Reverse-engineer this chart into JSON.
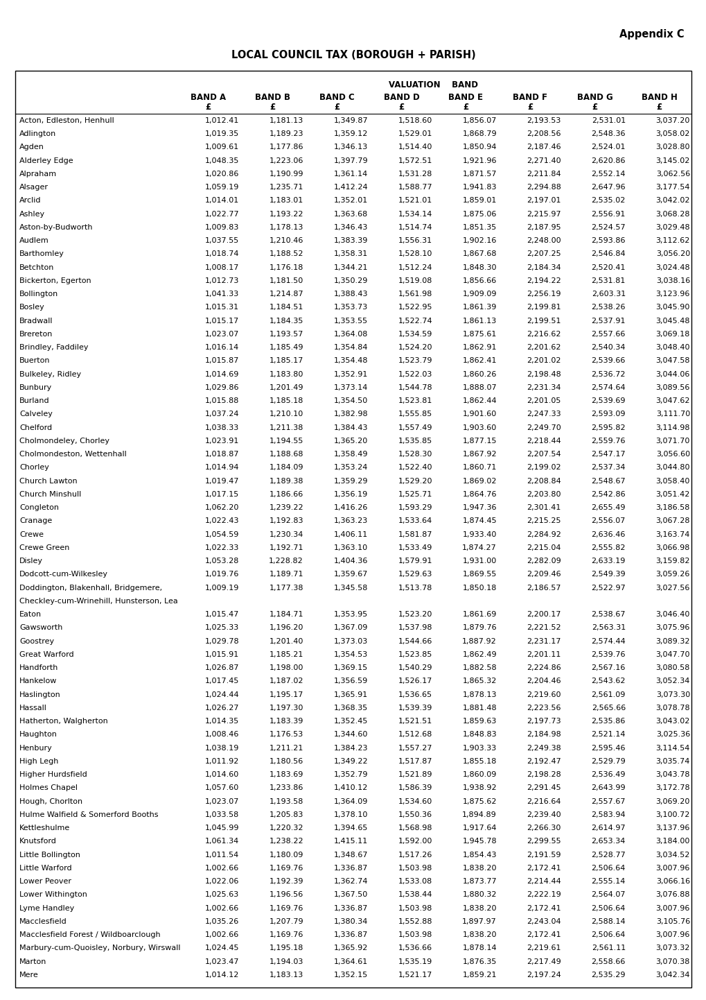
{
  "appendix_text": "Appendix C",
  "title": "LOCAL COUNCIL TAX (BOROUGH + PARISH)",
  "valuation_band_header": "VALUATION    BAND",
  "rows": [
    [
      "Acton, Edleston, Henhull",
      "1,012.41",
      "1,181.13",
      "1,349.87",
      "1,518.60",
      "1,856.07",
      "2,193.53",
      "2,531.01",
      "3,037.20"
    ],
    [
      "Adlington",
      "1,019.35",
      "1,189.23",
      "1,359.12",
      "1,529.01",
      "1,868.79",
      "2,208.56",
      "2,548.36",
      "3,058.02"
    ],
    [
      "Agden",
      "1,009.61",
      "1,177.86",
      "1,346.13",
      "1,514.40",
      "1,850.94",
      "2,187.46",
      "2,524.01",
      "3,028.80"
    ],
    [
      "Alderley Edge",
      "1,048.35",
      "1,223.06",
      "1,397.79",
      "1,572.51",
      "1,921.96",
      "2,271.40",
      "2,620.86",
      "3,145.02"
    ],
    [
      "Alpraham",
      "1,020.86",
      "1,190.99",
      "1,361.14",
      "1,531.28",
      "1,871.57",
      "2,211.84",
      "2,552.14",
      "3,062.56"
    ],
    [
      "Alsager",
      "1,059.19",
      "1,235.71",
      "1,412.24",
      "1,588.77",
      "1,941.83",
      "2,294.88",
      "2,647.96",
      "3,177.54"
    ],
    [
      "Arclid",
      "1,014.01",
      "1,183.01",
      "1,352.01",
      "1,521.01",
      "1,859.01",
      "2,197.01",
      "2,535.02",
      "3,042.02"
    ],
    [
      "Ashley",
      "1,022.77",
      "1,193.22",
      "1,363.68",
      "1,534.14",
      "1,875.06",
      "2,215.97",
      "2,556.91",
      "3,068.28"
    ],
    [
      "Aston-by-Budworth",
      "1,009.83",
      "1,178.13",
      "1,346.43",
      "1,514.74",
      "1,851.35",
      "2,187.95",
      "2,524.57",
      "3,029.48"
    ],
    [
      "Audlem",
      "1,037.55",
      "1,210.46",
      "1,383.39",
      "1,556.31",
      "1,902.16",
      "2,248.00",
      "2,593.86",
      "3,112.62"
    ],
    [
      "Barthomley",
      "1,018.74",
      "1,188.52",
      "1,358.31",
      "1,528.10",
      "1,867.68",
      "2,207.25",
      "2,546.84",
      "3,056.20"
    ],
    [
      "Betchton",
      "1,008.17",
      "1,176.18",
      "1,344.21",
      "1,512.24",
      "1,848.30",
      "2,184.34",
      "2,520.41",
      "3,024.48"
    ],
    [
      "Bickerton, Egerton",
      "1,012.73",
      "1,181.50",
      "1,350.29",
      "1,519.08",
      "1,856.66",
      "2,194.22",
      "2,531.81",
      "3,038.16"
    ],
    [
      "Bollington",
      "1,041.33",
      "1,214.87",
      "1,388.43",
      "1,561.98",
      "1,909.09",
      "2,256.19",
      "2,603.31",
      "3,123.96"
    ],
    [
      "Bosley",
      "1,015.31",
      "1,184.51",
      "1,353.73",
      "1,522.95",
      "1,861.39",
      "2,199.81",
      "2,538.26",
      "3,045.90"
    ],
    [
      "Bradwall",
      "1,015.17",
      "1,184.35",
      "1,353.55",
      "1,522.74",
      "1,861.13",
      "2,199.51",
      "2,537.91",
      "3,045.48"
    ],
    [
      "Brereton",
      "1,023.07",
      "1,193.57",
      "1,364.08",
      "1,534.59",
      "1,875.61",
      "2,216.62",
      "2,557.66",
      "3,069.18"
    ],
    [
      "Brindley, Faddiley",
      "1,016.14",
      "1,185.49",
      "1,354.84",
      "1,524.20",
      "1,862.91",
      "2,201.62",
      "2,540.34",
      "3,048.40"
    ],
    [
      "Buerton",
      "1,015.87",
      "1,185.17",
      "1,354.48",
      "1,523.79",
      "1,862.41",
      "2,201.02",
      "2,539.66",
      "3,047.58"
    ],
    [
      "Bulkeley, Ridley",
      "1,014.69",
      "1,183.80",
      "1,352.91",
      "1,522.03",
      "1,860.26",
      "2,198.48",
      "2,536.72",
      "3,044.06"
    ],
    [
      "Bunbury",
      "1,029.86",
      "1,201.49",
      "1,373.14",
      "1,544.78",
      "1,888.07",
      "2,231.34",
      "2,574.64",
      "3,089.56"
    ],
    [
      "Burland",
      "1,015.88",
      "1,185.18",
      "1,354.50",
      "1,523.81",
      "1,862.44",
      "2,201.05",
      "2,539.69",
      "3,047.62"
    ],
    [
      "Calveley",
      "1,037.24",
      "1,210.10",
      "1,382.98",
      "1,555.85",
      "1,901.60",
      "2,247.33",
      "2,593.09",
      "3,111.70"
    ],
    [
      "Chelford",
      "1,038.33",
      "1,211.38",
      "1,384.43",
      "1,557.49",
      "1,903.60",
      "2,249.70",
      "2,595.82",
      "3,114.98"
    ],
    [
      "Cholmondeley, Chorley",
      "1,023.91",
      "1,194.55",
      "1,365.20",
      "1,535.85",
      "1,877.15",
      "2,218.44",
      "2,559.76",
      "3,071.70"
    ],
    [
      "Cholmondeston, Wettenhall",
      "1,018.87",
      "1,188.68",
      "1,358.49",
      "1,528.30",
      "1,867.92",
      "2,207.54",
      "2,547.17",
      "3,056.60"
    ],
    [
      "Chorley",
      "1,014.94",
      "1,184.09",
      "1,353.24",
      "1,522.40",
      "1,860.71",
      "2,199.02",
      "2,537.34",
      "3,044.80"
    ],
    [
      "Church Lawton",
      "1,019.47",
      "1,189.38",
      "1,359.29",
      "1,529.20",
      "1,869.02",
      "2,208.84",
      "2,548.67",
      "3,058.40"
    ],
    [
      "Church Minshull",
      "1,017.15",
      "1,186.66",
      "1,356.19",
      "1,525.71",
      "1,864.76",
      "2,203.80",
      "2,542.86",
      "3,051.42"
    ],
    [
      "Congleton",
      "1,062.20",
      "1,239.22",
      "1,416.26",
      "1,593.29",
      "1,947.36",
      "2,301.41",
      "2,655.49",
      "3,186.58"
    ],
    [
      "Cranage",
      "1,022.43",
      "1,192.83",
      "1,363.23",
      "1,533.64",
      "1,874.45",
      "2,215.25",
      "2,556.07",
      "3,067.28"
    ],
    [
      "Crewe",
      "1,054.59",
      "1,230.34",
      "1,406.11",
      "1,581.87",
      "1,933.40",
      "2,284.92",
      "2,636.46",
      "3,163.74"
    ],
    [
      "Crewe Green",
      "1,022.33",
      "1,192.71",
      "1,363.10",
      "1,533.49",
      "1,874.27",
      "2,215.04",
      "2,555.82",
      "3,066.98"
    ],
    [
      "Disley",
      "1,053.28",
      "1,228.82",
      "1,404.36",
      "1,579.91",
      "1,931.00",
      "2,282.09",
      "2,633.19",
      "3,159.82"
    ],
    [
      "Dodcott-cum-Wilkesley",
      "1,019.76",
      "1,189.71",
      "1,359.67",
      "1,529.63",
      "1,869.55",
      "2,209.46",
      "2,549.39",
      "3,059.26"
    ],
    [
      "Doddington, Blakenhall, Bridgemere,\nCheckley-cum-Wrinehill, Hunsterson, Lea",
      "1,009.19",
      "1,177.38",
      "1,345.58",
      "1,513.78",
      "1,850.18",
      "2,186.57",
      "2,522.97",
      "3,027.56"
    ],
    [
      "Eaton",
      "1,015.47",
      "1,184.71",
      "1,353.95",
      "1,523.20",
      "1,861.69",
      "2,200.17",
      "2,538.67",
      "3,046.40"
    ],
    [
      "Gawsworth",
      "1,025.33",
      "1,196.20",
      "1,367.09",
      "1,537.98",
      "1,879.76",
      "2,221.52",
      "2,563.31",
      "3,075.96"
    ],
    [
      "Goostrey",
      "1,029.78",
      "1,201.40",
      "1,373.03",
      "1,544.66",
      "1,887.92",
      "2,231.17",
      "2,574.44",
      "3,089.32"
    ],
    [
      "Great Warford",
      "1,015.91",
      "1,185.21",
      "1,354.53",
      "1,523.85",
      "1,862.49",
      "2,201.11",
      "2,539.76",
      "3,047.70"
    ],
    [
      "Handforth",
      "1,026.87",
      "1,198.00",
      "1,369.15",
      "1,540.29",
      "1,882.58",
      "2,224.86",
      "2,567.16",
      "3,080.58"
    ],
    [
      "Hankelow",
      "1,017.45",
      "1,187.02",
      "1,356.59",
      "1,526.17",
      "1,865.32",
      "2,204.46",
      "2,543.62",
      "3,052.34"
    ],
    [
      "Haslington",
      "1,024.44",
      "1,195.17",
      "1,365.91",
      "1,536.65",
      "1,878.13",
      "2,219.60",
      "2,561.09",
      "3,073.30"
    ],
    [
      "Hassall",
      "1,026.27",
      "1,197.30",
      "1,368.35",
      "1,539.39",
      "1,881.48",
      "2,223.56",
      "2,565.66",
      "3,078.78"
    ],
    [
      "Hatherton, Walgherton",
      "1,014.35",
      "1,183.39",
      "1,352.45",
      "1,521.51",
      "1,859.63",
      "2,197.73",
      "2,535.86",
      "3,043.02"
    ],
    [
      "Haughton",
      "1,008.46",
      "1,176.53",
      "1,344.60",
      "1,512.68",
      "1,848.83",
      "2,184.98",
      "2,521.14",
      "3,025.36"
    ],
    [
      "Henbury",
      "1,038.19",
      "1,211.21",
      "1,384.23",
      "1,557.27",
      "1,903.33",
      "2,249.38",
      "2,595.46",
      "3,114.54"
    ],
    [
      "High Legh",
      "1,011.92",
      "1,180.56",
      "1,349.22",
      "1,517.87",
      "1,855.18",
      "2,192.47",
      "2,529.79",
      "3,035.74"
    ],
    [
      "Higher Hurdsfield",
      "1,014.60",
      "1,183.69",
      "1,352.79",
      "1,521.89",
      "1,860.09",
      "2,198.28",
      "2,536.49",
      "3,043.78"
    ],
    [
      "Holmes Chapel",
      "1,057.60",
      "1,233.86",
      "1,410.12",
      "1,586.39",
      "1,938.92",
      "2,291.45",
      "2,643.99",
      "3,172.78"
    ],
    [
      "Hough, Chorlton",
      "1,023.07",
      "1,193.58",
      "1,364.09",
      "1,534.60",
      "1,875.62",
      "2,216.64",
      "2,557.67",
      "3,069.20"
    ],
    [
      "Hulme Walfield & Somerford Booths",
      "1,033.58",
      "1,205.83",
      "1,378.10",
      "1,550.36",
      "1,894.89",
      "2,239.40",
      "2,583.94",
      "3,100.72"
    ],
    [
      "Kettleshulme",
      "1,045.99",
      "1,220.32",
      "1,394.65",
      "1,568.98",
      "1,917.64",
      "2,266.30",
      "2,614.97",
      "3,137.96"
    ],
    [
      "Knutsford",
      "1,061.34",
      "1,238.22",
      "1,415.11",
      "1,592.00",
      "1,945.78",
      "2,299.55",
      "2,653.34",
      "3,184.00"
    ],
    [
      "Little Bollington",
      "1,011.54",
      "1,180.09",
      "1,348.67",
      "1,517.26",
      "1,854.43",
      "2,191.59",
      "2,528.77",
      "3,034.52"
    ],
    [
      "Little Warford",
      "1,002.66",
      "1,169.76",
      "1,336.87",
      "1,503.98",
      "1,838.20",
      "2,172.41",
      "2,506.64",
      "3,007.96"
    ],
    [
      "Lower Peover",
      "1,022.06",
      "1,192.39",
      "1,362.74",
      "1,533.08",
      "1,873.77",
      "2,214.44",
      "2,555.14",
      "3,066.16"
    ],
    [
      "Lower Withington",
      "1,025.63",
      "1,196.56",
      "1,367.50",
      "1,538.44",
      "1,880.32",
      "2,222.19",
      "2,564.07",
      "3,076.88"
    ],
    [
      "Lyme Handley",
      "1,002.66",
      "1,169.76",
      "1,336.87",
      "1,503.98",
      "1,838.20",
      "2,172.41",
      "2,506.64",
      "3,007.96"
    ],
    [
      "Macclesfield",
      "1,035.26",
      "1,207.79",
      "1,380.34",
      "1,552.88",
      "1,897.97",
      "2,243.04",
      "2,588.14",
      "3,105.76"
    ],
    [
      "Macclesfield Forest / Wildboarclough",
      "1,002.66",
      "1,169.76",
      "1,336.87",
      "1,503.98",
      "1,838.20",
      "2,172.41",
      "2,506.64",
      "3,007.96"
    ],
    [
      "Marbury-cum-Quoisley, Norbury, Wirswall",
      "1,024.45",
      "1,195.18",
      "1,365.92",
      "1,536.66",
      "1,878.14",
      "2,219.61",
      "2,561.11",
      "3,073.32"
    ],
    [
      "Marton",
      "1,023.47",
      "1,194.03",
      "1,364.61",
      "1,535.19",
      "1,876.35",
      "2,217.49",
      "2,558.66",
      "3,070.38"
    ],
    [
      "Mere",
      "1,014.12",
      "1,183.13",
      "1,352.15",
      "1,521.17",
      "1,859.21",
      "2,197.24",
      "2,535.29",
      "3,042.34"
    ]
  ],
  "band_labels": [
    "BAND A",
    "BAND B",
    "BAND C",
    "BAND D",
    "BAND E",
    "BAND F",
    "BAND G",
    "BAND H"
  ],
  "font_size_data": 8.0,
  "font_size_header": 8.5,
  "font_size_title": 10.5,
  "font_size_appendix": 10.5
}
